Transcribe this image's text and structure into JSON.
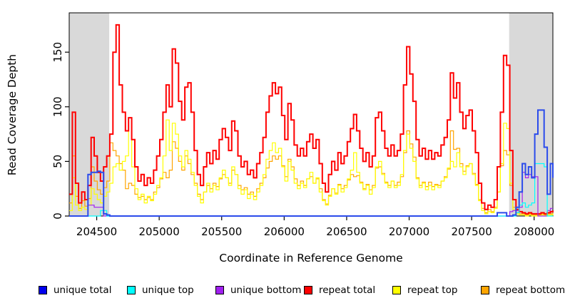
{
  "chart_data": {
    "type": "line",
    "title": "",
    "xlabel": "Coordinate in Reference Genome",
    "ylabel": "Read Coverage Depth",
    "xlim": [
      204280,
      208150
    ],
    "ylim": [
      0,
      186
    ],
    "xticks": [
      204500,
      205000,
      205500,
      206000,
      206500,
      207000,
      207500,
      208000
    ],
    "yticks": [
      0,
      50,
      100,
      150
    ],
    "grid": false,
    "step": true,
    "box_color": "#000000",
    "shade_color": "#D9D9D9",
    "shaded_regions": [
      {
        "x0": 204280,
        "x1": 204600
      },
      {
        "x0": 207800,
        "x1": 208150
      }
    ],
    "x0": 204280,
    "dx": 25,
    "series": [
      {
        "name": "repeat bottom",
        "color": "#FFA500",
        "width": 1.2,
        "values": [
          12,
          55,
          18,
          7,
          14,
          9,
          16,
          45,
          32,
          24,
          20,
          26,
          32,
          67,
          60,
          55,
          48,
          42,
          25,
          30,
          28,
          20,
          17,
          18,
          15,
          17,
          15,
          22,
          26,
          34,
          40,
          35,
          42,
          68,
          62,
          50,
          42,
          55,
          48,
          38,
          30,
          20,
          15,
          22,
          28,
          25,
          30,
          27,
          34,
          38,
          35,
          30,
          42,
          38,
          28,
          24,
          26,
          20,
          22,
          18,
          25,
          30,
          35,
          44,
          50,
          55,
          52,
          55,
          46,
          36,
          52,
          45,
          34,
          28,
          32,
          28,
          34,
          36,
          30,
          34,
          25,
          15,
          11,
          19,
          25,
          21,
          29,
          25,
          28,
          33,
          38,
          36,
          37,
          31,
          25,
          29,
          24,
          28,
          44,
          45,
          39,
          31,
          28,
          32,
          28,
          31,
          36,
          58,
          78,
          66,
          54,
          35,
          28,
          31,
          27,
          31,
          27,
          29,
          28,
          32,
          36,
          43,
          78,
          61,
          62,
          48,
          41,
          46,
          48,
          39,
          29,
          15,
          7,
          3,
          6,
          4,
          8,
          22,
          46,
          60,
          56,
          28,
          8,
          3,
          2,
          2,
          1,
          2,
          1,
          1,
          1,
          2,
          1,
          2,
          2,
          3
        ]
      },
      {
        "name": "repeat top",
        "color": "#FFFF00",
        "width": 1.2,
        "values": [
          5,
          35,
          10,
          5,
          8,
          6,
          10,
          25,
          20,
          15,
          12,
          18,
          22,
          30,
          45,
          48,
          42,
          50,
          55,
          90,
          45,
          25,
          15,
          20,
          12,
          18,
          14,
          20,
          28,
          35,
          55,
          88,
          60,
          85,
          75,
          55,
          45,
          60,
          52,
          40,
          28,
          18,
          12,
          22,
          30,
          22,
          28,
          24,
          35,
          42,
          35,
          28,
          45,
          38,
          25,
          20,
          24,
          16,
          20,
          15,
          22,
          28,
          38,
          52,
          60,
          67,
          58,
          62,
          45,
          32,
          50,
          42,
          30,
          25,
          30,
          26,
          34,
          40,
          30,
          35,
          22,
          14,
          10,
          18,
          25,
          20,
          28,
          22,
          26,
          34,
          42,
          58,
          40,
          30,
          24,
          28,
          20,
          26,
          45,
          50,
          38,
          30,
          26,
          32,
          26,
          28,
          38,
          60,
          75,
          62,
          50,
          34,
          26,
          30,
          24,
          28,
          24,
          28,
          26,
          32,
          35,
          44,
          50,
          45,
          58,
          45,
          38,
          45,
          48,
          38,
          28,
          14,
          5,
          2,
          4,
          3,
          7,
          22,
          48,
          85,
          80,
          30,
          6,
          2,
          1,
          1,
          0,
          1,
          0,
          0,
          0,
          1,
          0,
          1,
          1,
          2
        ]
      },
      {
        "name": "repeat total",
        "color": "#FF0000",
        "width": 2,
        "values": [
          20,
          95,
          30,
          12,
          22,
          15,
          28,
          72,
          55,
          40,
          32,
          45,
          55,
          75,
          150,
          175,
          120,
          95,
          78,
          90,
          70,
          45,
          32,
          38,
          28,
          35,
          30,
          42,
          55,
          70,
          95,
          120,
          100,
          153,
          140,
          105,
          88,
          118,
          122,
          95,
          60,
          38,
          28,
          45,
          58,
          48,
          60,
          52,
          70,
          80,
          72,
          60,
          87,
          78,
          55,
          45,
          50,
          38,
          42,
          35,
          48,
          58,
          72,
          95,
          110,
          122,
          112,
          118,
          92,
          70,
          103,
          88,
          65,
          55,
          62,
          55,
          68,
          75,
          62,
          70,
          48,
          30,
          22,
          38,
          50,
          42,
          58,
          48,
          55,
          68,
          80,
          93,
          78,
          62,
          50,
          58,
          45,
          55,
          90,
          95,
          78,
          62,
          55,
          65,
          55,
          60,
          75,
          120,
          155,
          130,
          105,
          70,
          55,
          62,
          52,
          60,
          52,
          58,
          55,
          65,
          72,
          88,
          131,
          108,
          122,
          95,
          80,
          92,
          97,
          78,
          58,
          30,
          12,
          6,
          10,
          8,
          15,
          45,
          95,
          147,
          138,
          60,
          15,
          6,
          4,
          3,
          2,
          3,
          2,
          2,
          2,
          3,
          2,
          3,
          4,
          5
        ]
      },
      {
        "name": "unique bottom",
        "color": "#A020F0",
        "width": 1.2,
        "values": [
          0,
          0,
          0,
          0,
          0,
          0,
          10,
          10,
          8,
          8,
          8,
          0,
          0,
          0,
          0,
          0,
          0,
          0,
          0,
          0,
          0,
          0,
          0,
          0,
          0,
          0,
          0,
          0,
          0,
          0,
          0,
          0,
          0,
          0,
          0,
          0,
          0,
          0,
          0,
          0,
          0,
          0,
          0,
          0,
          0,
          0,
          0,
          0,
          0,
          0,
          0,
          0,
          0,
          0,
          0,
          0,
          0,
          0,
          0,
          0,
          0,
          0,
          0,
          0,
          0,
          0,
          0,
          0,
          0,
          0,
          0,
          0,
          0,
          0,
          0,
          0,
          0,
          0,
          0,
          0,
          0,
          0,
          0,
          0,
          0,
          0,
          0,
          0,
          0,
          0,
          0,
          0,
          0,
          0,
          0,
          0,
          0,
          0,
          0,
          0,
          0,
          0,
          0,
          0,
          0,
          0,
          0,
          0,
          0,
          0,
          0,
          0,
          0,
          0,
          0,
          0,
          0,
          0,
          0,
          0,
          0,
          0,
          0,
          0,
          0,
          0,
          0,
          0,
          0,
          0,
          0,
          0,
          0,
          0,
          0,
          0,
          0,
          0,
          0,
          0,
          0,
          4,
          5,
          5,
          8,
          40,
          35,
          38,
          36,
          36,
          0,
          0,
          0,
          5,
          7,
          7
        ]
      },
      {
        "name": "unique top",
        "color": "#00FFFF",
        "width": 1.2,
        "values": [
          0,
          0,
          0,
          0,
          0,
          0,
          0,
          0,
          0,
          0,
          5,
          5,
          0,
          0,
          0,
          0,
          0,
          0,
          0,
          0,
          0,
          0,
          0,
          0,
          0,
          0,
          0,
          0,
          0,
          0,
          0,
          0,
          0,
          0,
          0,
          0,
          0,
          0,
          0,
          0,
          0,
          0,
          0,
          0,
          0,
          0,
          0,
          0,
          0,
          0,
          0,
          0,
          0,
          0,
          0,
          0,
          0,
          0,
          0,
          0,
          0,
          0,
          0,
          0,
          0,
          0,
          0,
          0,
          0,
          0,
          0,
          0,
          0,
          0,
          0,
          0,
          0,
          0,
          0,
          0,
          0,
          0,
          0,
          0,
          0,
          0,
          0,
          0,
          0,
          0,
          0,
          0,
          0,
          0,
          0,
          0,
          0,
          0,
          0,
          0,
          0,
          0,
          0,
          0,
          0,
          0,
          0,
          0,
          0,
          0,
          0,
          0,
          0,
          0,
          0,
          0,
          0,
          0,
          0,
          0,
          0,
          0,
          0,
          0,
          0,
          0,
          0,
          0,
          0,
          0,
          0,
          0,
          0,
          0,
          0,
          0,
          0,
          0,
          0,
          0,
          0,
          0,
          0,
          3,
          10,
          12,
          8,
          10,
          12,
          48,
          48,
          48,
          45,
          0,
          0,
          0
        ]
      },
      {
        "name": "unique total",
        "color": "#2B4BEB",
        "width": 2,
        "values": [
          0,
          0,
          0,
          0,
          0,
          0,
          38,
          40,
          40,
          41,
          40,
          2,
          1,
          0,
          0,
          0,
          0,
          0,
          0,
          0,
          0,
          0,
          0,
          0,
          0,
          0,
          0,
          0,
          0,
          0,
          0,
          0,
          0,
          0,
          0,
          0,
          0,
          0,
          0,
          0,
          0,
          0,
          0,
          0,
          0,
          0,
          0,
          0,
          0,
          0,
          0,
          0,
          0,
          0,
          0,
          0,
          0,
          0,
          0,
          0,
          0,
          0,
          0,
          0,
          0,
          0,
          0,
          0,
          0,
          0,
          0,
          0,
          0,
          0,
          0,
          0,
          0,
          0,
          0,
          0,
          0,
          0,
          0,
          0,
          0,
          0,
          0,
          0,
          0,
          0,
          0,
          0,
          0,
          0,
          0,
          0,
          0,
          0,
          0,
          0,
          0,
          0,
          0,
          0,
          0,
          0,
          0,
          0,
          0,
          0,
          0,
          0,
          0,
          0,
          0,
          0,
          0,
          0,
          0,
          0,
          0,
          0,
          0,
          0,
          0,
          0,
          0,
          0,
          0,
          0,
          0,
          0,
          0,
          0,
          0,
          0,
          0,
          3,
          3,
          3,
          0,
          0,
          1,
          8,
          22,
          48,
          38,
          45,
          35,
          75,
          97,
          97,
          63,
          20,
          48,
          35
        ]
      }
    ],
    "legend": [
      {
        "label": "unique total",
        "color": "#0000EE",
        "slug": "unique-total"
      },
      {
        "label": "unique top",
        "color": "#00FFFF",
        "slug": "unique-top"
      },
      {
        "label": "unique bottom",
        "color": "#A020F0",
        "slug": "unique-bottom"
      },
      {
        "label": "repeat total",
        "color": "#FF0000",
        "slug": "repeat-total"
      },
      {
        "label": "repeat top",
        "color": "#FFFF00",
        "slug": "repeat-top"
      },
      {
        "label": "repeat bottom",
        "color": "#FFA500",
        "slug": "repeat-bottom"
      }
    ],
    "legend_position": "bottom"
  }
}
